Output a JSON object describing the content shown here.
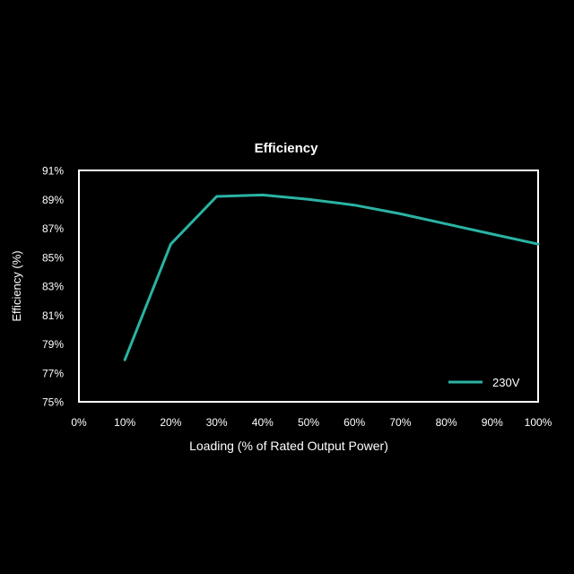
{
  "chart_data": {
    "type": "line",
    "title": "Efficiency",
    "xlabel": "Loading (% of Rated Output Power)",
    "ylabel": "Efficiency (%)",
    "x_ticks": [
      "0%",
      "10%",
      "20%",
      "30%",
      "40%",
      "50%",
      "60%",
      "70%",
      "80%",
      "90%",
      "100%"
    ],
    "y_ticks": [
      "75%",
      "77%",
      "79%",
      "81%",
      "83%",
      "85%",
      "87%",
      "89%",
      "91%"
    ],
    "xlim": [
      0,
      100
    ],
    "ylim": [
      75,
      91
    ],
    "grid": false,
    "legend_position": "bottom-right",
    "series": [
      {
        "name": "230V",
        "color": "#2ab3a3",
        "x": [
          10,
          20,
          30,
          40,
          50,
          60,
          70,
          80,
          90,
          100
        ],
        "y": [
          77.9,
          85.9,
          89.2,
          89.3,
          89.0,
          88.6,
          88.0,
          87.3,
          86.6,
          85.9
        ]
      }
    ]
  }
}
